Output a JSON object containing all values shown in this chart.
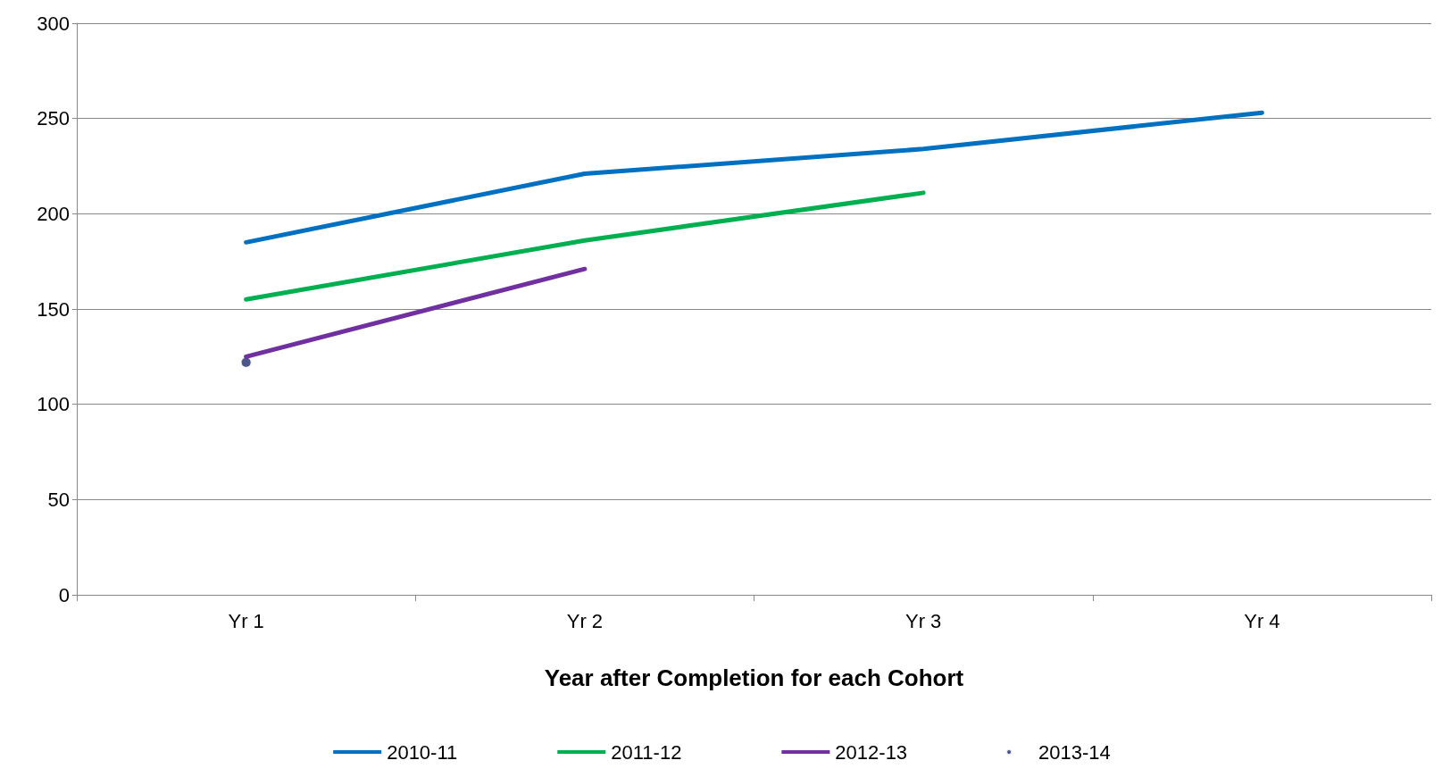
{
  "chart_data": {
    "type": "line",
    "xlabel": "Year after Completion for each Cohort",
    "categories": [
      "Yr 1",
      "Yr 2",
      "Yr 3",
      "Yr 4"
    ],
    "series": [
      {
        "name": "2010-11",
        "color": "#0070c0",
        "values": [
          185,
          221,
          234,
          253
        ]
      },
      {
        "name": "2011-12",
        "color": "#00b050",
        "values": [
          155,
          186,
          211,
          null
        ]
      },
      {
        "name": "2012-13",
        "color": "#7030a0",
        "values": [
          125,
          171,
          null,
          null
        ]
      },
      {
        "name": "2013-14",
        "color": "#1f2d6b",
        "type": "scatter",
        "marker": "circle",
        "values": [
          122,
          null,
          null,
          null
        ]
      }
    ],
    "ylim": [
      0,
      300
    ],
    "yticks": [
      0,
      50,
      100,
      150,
      200,
      250,
      300
    ],
    "grid": "y",
    "legend": "bottom",
    "marker": "none",
    "line_style": "solid"
  }
}
